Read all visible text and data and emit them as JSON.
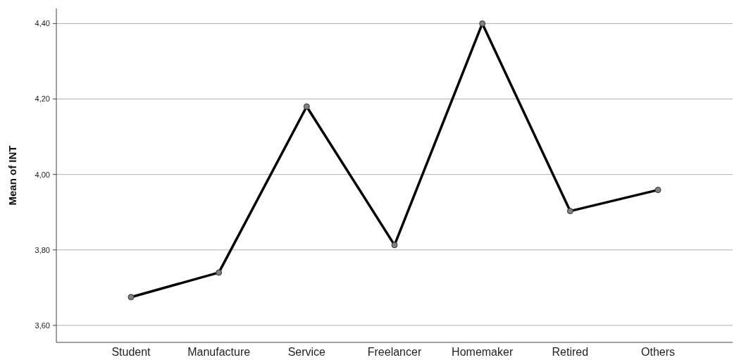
{
  "chart_data": {
    "type": "line",
    "ylabel": "Mean of INT",
    "categories": [
      "Student",
      "Manufacture",
      "Service",
      "Freelancer",
      "Homemaker",
      "Retired",
      "Others"
    ],
    "series": [
      {
        "color": "#000000",
        "values": [
          3.675,
          3.74,
          4.18,
          3.813,
          4.4,
          3.903,
          3.959
        ]
      }
    ],
    "ylim": [
      3.555,
      4.44
    ],
    "yticks": [
      {
        "value": 3.6,
        "label": "3,60"
      },
      {
        "value": 3.8,
        "label": "3,80"
      },
      {
        "value": 4.0,
        "label": "4,00"
      },
      {
        "value": 4.2,
        "label": "4,20"
      },
      {
        "value": 4.4,
        "label": "4,40"
      }
    ],
    "grid": "y",
    "marker": "circle",
    "line_style": "solid"
  }
}
